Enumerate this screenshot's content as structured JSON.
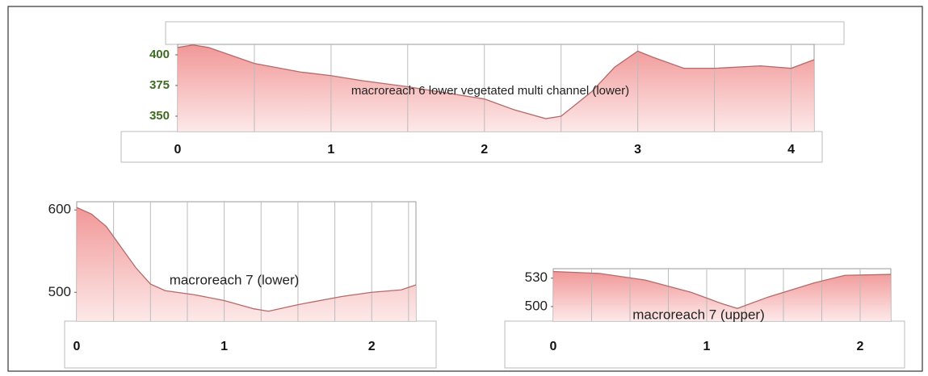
{
  "chart_data": [
    {
      "type": "area",
      "title": "macroreach 6 lower vegetated multi channel (lower)",
      "x": [
        0,
        0.1,
        0.2,
        0.5,
        0.8,
        1.0,
        1.2,
        1.5,
        1.8,
        2.0,
        2.2,
        2.4,
        2.5,
        2.7,
        2.85,
        3.0,
        3.1,
        3.3,
        3.5,
        3.8,
        4.0,
        4.15
      ],
      "values": [
        406,
        408,
        406,
        393,
        386,
        383,
        379,
        374,
        368,
        364,
        355,
        348,
        350,
        370,
        390,
        403,
        398,
        389,
        389,
        391,
        389,
        396
      ],
      "xlim": [
        0,
        4.15
      ],
      "xticks": [
        0,
        1,
        2,
        3,
        4
      ],
      "xgrid": [
        0.5,
        1,
        1.5,
        2,
        2.5,
        3,
        3.5,
        4
      ],
      "ylim": [
        337.5,
        408.5
      ],
      "yticks": [
        350,
        375,
        400
      ],
      "ytick_color": "#3d6b22",
      "color": "#f29a9a",
      "line_color": "#b46a6a",
      "grid": true
    },
    {
      "type": "area",
      "title": "macroreach 7 (lower)",
      "x": [
        0,
        0.1,
        0.2,
        0.3,
        0.4,
        0.5,
        0.6,
        0.8,
        1.0,
        1.2,
        1.3,
        1.5,
        1.8,
        2.0,
        2.2,
        2.3
      ],
      "values": [
        603,
        595,
        580,
        555,
        530,
        510,
        502,
        497,
        490,
        480,
        477,
        485,
        495,
        500,
        503,
        509
      ],
      "xlim": [
        0,
        2.3
      ],
      "xticks": [
        0,
        1,
        2
      ],
      "xgrid": [
        0.25,
        0.5,
        0.75,
        1,
        1.25,
        1.5,
        1.75,
        2,
        2.25
      ],
      "ylim": [
        465,
        610
      ],
      "yticks": [
        500,
        600
      ],
      "ytick_color": "#222222",
      "color": "#f29a9a",
      "line_color": "#b46a6a",
      "grid": true
    },
    {
      "type": "area",
      "title": "macroreach 7 (upper)",
      "x": [
        0,
        0.3,
        0.6,
        0.9,
        1.1,
        1.2,
        1.4,
        1.7,
        1.9,
        2.2
      ],
      "values": [
        537,
        535,
        528,
        515,
        503,
        498,
        510,
        525,
        533,
        534
      ],
      "xlim": [
        0,
        2.2
      ],
      "xticks": [
        0,
        1,
        2
      ],
      "xgrid": [
        0.25,
        0.5,
        0.75,
        1,
        1.25,
        1.5,
        1.75,
        2
      ],
      "ylim": [
        484.6,
        540
      ],
      "yticks": [
        500,
        530
      ],
      "ytick_color": "#222222",
      "color": "#f29a9a",
      "line_color": "#b46a6a",
      "grid": true
    }
  ]
}
